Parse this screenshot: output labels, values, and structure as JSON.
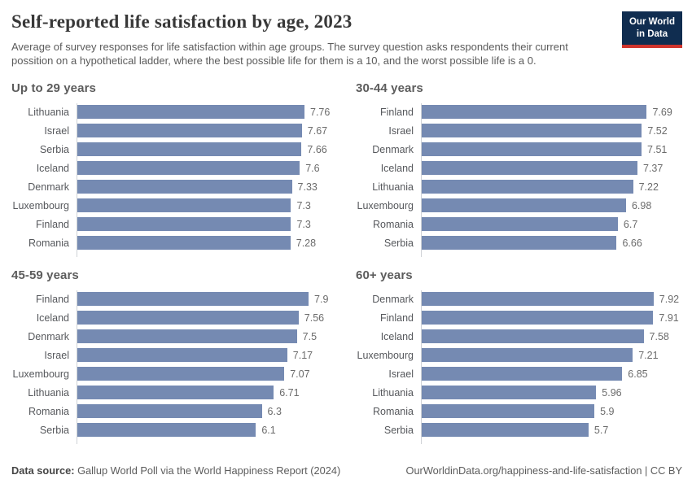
{
  "header": {
    "title": "Self-reported life satisfaction by age, 2023",
    "subtitle": "Average of survey responses for life satisfaction within age groups. The survey question asks respondents their current possition on a hypothetical ladder, where the best possible life for them is a 10, and the worst possible life is a 0.",
    "logo": {
      "line1": "Our World",
      "line2": "in Data"
    }
  },
  "colors": {
    "bar": "#758AB2",
    "axis_line": "#cfd2d6",
    "logo_navy": "#102d50",
    "logo_red": "#d0342c"
  },
  "chart_data": [
    {
      "type": "bar",
      "orientation": "horizontal",
      "title": "Up to 29 years",
      "categories": [
        "Lithuania",
        "Israel",
        "Serbia",
        "Iceland",
        "Denmark",
        "Luxembourg",
        "Finland",
        "Romania"
      ],
      "values": [
        7.76,
        7.67,
        7.66,
        7.6,
        7.33,
        7.3,
        7.3,
        7.28
      ],
      "value_labels": [
        "7.76",
        "7.67",
        "7.66",
        "7.6",
        "7.33",
        "7.3",
        "7.3",
        "7.28"
      ],
      "xlim": [
        0,
        8.9
      ],
      "grid": false,
      "legend": false
    },
    {
      "type": "bar",
      "orientation": "horizontal",
      "title": "30-44 years",
      "categories": [
        "Finland",
        "Israel",
        "Denmark",
        "Iceland",
        "Lithuania",
        "Luxembourg",
        "Romania",
        "Serbia"
      ],
      "values": [
        7.69,
        7.52,
        7.51,
        7.37,
        7.22,
        6.98,
        6.7,
        6.66
      ],
      "value_labels": [
        "7.69",
        "7.52",
        "7.51",
        "7.37",
        "7.22",
        "6.98",
        "6.7",
        "6.66"
      ],
      "xlim": [
        0,
        8.9
      ],
      "grid": false,
      "legend": false
    },
    {
      "type": "bar",
      "orientation": "horizontal",
      "title": "45-59 years",
      "categories": [
        "Finland",
        "Iceland",
        "Denmark",
        "Israel",
        "Luxembourg",
        "Lithuania",
        "Romania",
        "Serbia"
      ],
      "values": [
        7.9,
        7.56,
        7.5,
        7.17,
        7.07,
        6.71,
        6.3,
        6.1
      ],
      "value_labels": [
        "7.9",
        "7.56",
        "7.5",
        "7.17",
        "7.07",
        "6.71",
        "6.3",
        "6.1"
      ],
      "xlim": [
        0,
        8.9
      ],
      "grid": false,
      "legend": false
    },
    {
      "type": "bar",
      "orientation": "horizontal",
      "title": "60+ years",
      "categories": [
        "Denmark",
        "Finland",
        "Iceland",
        "Luxembourg",
        "Israel",
        "Lithuania",
        "Romania",
        "Serbia"
      ],
      "values": [
        7.92,
        7.91,
        7.58,
        7.21,
        6.85,
        5.96,
        5.9,
        5.7
      ],
      "value_labels": [
        "7.92",
        "7.91",
        "7.58",
        "7.21",
        "6.85",
        "5.96",
        "5.9",
        "5.7"
      ],
      "xlim": [
        0,
        8.9
      ],
      "grid": false,
      "legend": false
    }
  ],
  "footer": {
    "source_label": "Data source:",
    "source_text": " Gallup World Poll via the World Happiness Report (2024)",
    "url_text": "OurWorldinData.org/happiness-and-life-satisfaction | CC BY"
  }
}
